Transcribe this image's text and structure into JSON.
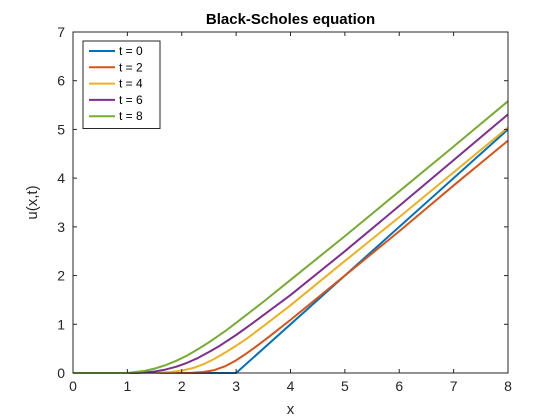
{
  "chart_data": {
    "type": "line",
    "title": "Black-Scholes equation",
    "xlabel": "x",
    "ylabel": "u(x,t)",
    "xlim": [
      0,
      8
    ],
    "ylim": [
      0,
      7
    ],
    "xticks": [
      "0",
      "1",
      "2",
      "3",
      "4",
      "5",
      "6",
      "7",
      "8"
    ],
    "yticks": [
      "0",
      "1",
      "2",
      "3",
      "4",
      "5",
      "6",
      "7"
    ],
    "grid": false,
    "legend_position": "top-left",
    "series": [
      {
        "name": "t = 0",
        "color": "#0072BD",
        "x": [
          0,
          3.0,
          8
        ],
        "y": [
          0,
          0,
          5.0
        ]
      },
      {
        "name": "t = 2",
        "color": "#D95319",
        "x": [
          0,
          2.0,
          2.2,
          2.4,
          2.6,
          2.8,
          3.0,
          3.2,
          3.4,
          3.6,
          4.0,
          5.0,
          6.0,
          7.0,
          8.0
        ],
        "y": [
          0,
          0,
          0.005,
          0.02,
          0.06,
          0.14,
          0.26,
          0.41,
          0.57,
          0.74,
          1.09,
          2.0,
          2.91,
          3.85,
          4.77
        ]
      },
      {
        "name": "t = 4",
        "color": "#EDB120",
        "x": [
          0,
          1.5,
          1.8,
          2.0,
          2.2,
          2.4,
          2.6,
          2.8,
          3.0,
          3.2,
          3.5,
          4.0,
          5.0,
          6.0,
          7.0,
          8.0
        ],
        "y": [
          0,
          0,
          0.02,
          0.05,
          0.1,
          0.18,
          0.29,
          0.42,
          0.56,
          0.71,
          0.96,
          1.39,
          2.3,
          3.2,
          4.12,
          5.04
        ]
      },
      {
        "name": "t = 6",
        "color": "#7E2F8E",
        "x": [
          0,
          1.2,
          1.5,
          1.7,
          1.9,
          2.1,
          2.3,
          2.5,
          2.7,
          3.0,
          3.3,
          4.0,
          5.0,
          6.0,
          7.0,
          8.0
        ],
        "y": [
          0,
          0,
          0.03,
          0.07,
          0.13,
          0.21,
          0.31,
          0.43,
          0.56,
          0.78,
          1.02,
          1.6,
          2.5,
          3.43,
          4.37,
          5.31
        ]
      },
      {
        "name": "t = 8",
        "color": "#77AC30",
        "x": [
          0,
          1.0,
          1.3,
          1.5,
          1.7,
          1.9,
          2.1,
          2.3,
          2.5,
          2.8,
          3.0,
          3.5,
          4.0,
          5.0,
          6.0,
          7.0,
          8.0
        ],
        "y": [
          0,
          0,
          0.04,
          0.09,
          0.16,
          0.25,
          0.36,
          0.49,
          0.63,
          0.86,
          1.03,
          1.46,
          1.91,
          2.81,
          3.73,
          4.65,
          5.58
        ]
      }
    ]
  }
}
